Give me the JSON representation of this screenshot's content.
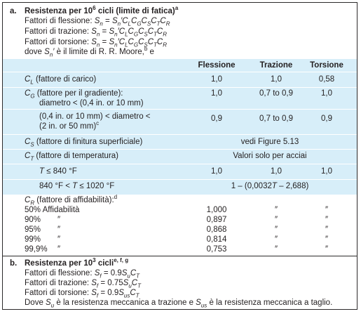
{
  "section_a": {
    "letter": "a.",
    "title": "Resistenza per 10⁶ cicli (limite di fatica)ᵃ",
    "lines": [
      "Fattori di flessione: Sₙ = Sₙ′C_L C_G C_S C_T C_R",
      "Fattori di trazione: Sₙ = Sₙ′C_L C_G C_S C_T C_R",
      "Fattori di torsione: Sₙ = Sₙ′C_L C_G C_S C_T C_R",
      "dove Sₙ′ è il limite di R. R. Moore,ᵇ e"
    ]
  },
  "columns": [
    "Flessione",
    "Trazione",
    "Torsione"
  ],
  "rows": {
    "cl": {
      "label": "C_L (fattore di carico)",
      "v1": "1,0",
      "v2": "1,0",
      "v3": "0,58"
    },
    "cg1": {
      "label1": "C_G (fattore per il gradiente):",
      "label2": "diametro < (0,4 in. or 10 mm)",
      "v1": "1,0",
      "v2": "0,7 to 0,9",
      "v3": "1,0"
    },
    "cg2": {
      "label1": "(0,4 in. or 10 mm) < diametro <",
      "label2": "(2 in. or 50 mm)ᶜ",
      "v1": "0,9",
      "v2": "0,7 to 0,9",
      "v3": "0,9"
    },
    "cs": {
      "label": "C_S (fattore di finitura superficiale)",
      "value": "vedi Figure 5.13"
    },
    "ct": {
      "label": "C_T (fattore di temperatura)",
      "value": "Valori solo per acciai"
    },
    "t1": {
      "label": "T ≤ 840 °F",
      "v1": "1,0",
      "v2": "1,0",
      "v3": "1,0"
    },
    "t2": {
      "label": "840 °F < T ≤ 1020 °F",
      "value": "1 – (0,0032T – 2,688)"
    },
    "cr": {
      "label": "C_R (fattore di affidabilità):ᵈ",
      "items": [
        {
          "label": "50% Affidabilità",
          "v1": "1,000",
          "v2": "″",
          "v3": "″"
        },
        {
          "label": "90%",
          "mark": "″",
          "v1": "0,897",
          "v2": "″",
          "v3": "″"
        },
        {
          "label": "95%",
          "mark": "″",
          "v1": "0,868",
          "v2": "″",
          "v3": "″"
        },
        {
          "label": "99%",
          "mark": "″",
          "v1": "0,814",
          "v2": "″",
          "v3": "″"
        },
        {
          "label": "99,9%",
          "mark": "″",
          "v1": "0,753",
          "v2": "″",
          "v3": "″"
        }
      ]
    }
  },
  "section_b": {
    "letter": "b.",
    "title": "Resistenza per 10³ ciclie,f,g",
    "lines": [
      "Fattori di flessione: S_f = 0.9S_u C_T",
      "Fattori di trazione: S_f = 0.75S_u C_T",
      "Fattori di torsione: S_f = 0.9S_us C_T",
      "Dove S_u è la resistenza meccanica a trazione e S_us è la resistenza meccanica a taglio."
    ]
  }
}
